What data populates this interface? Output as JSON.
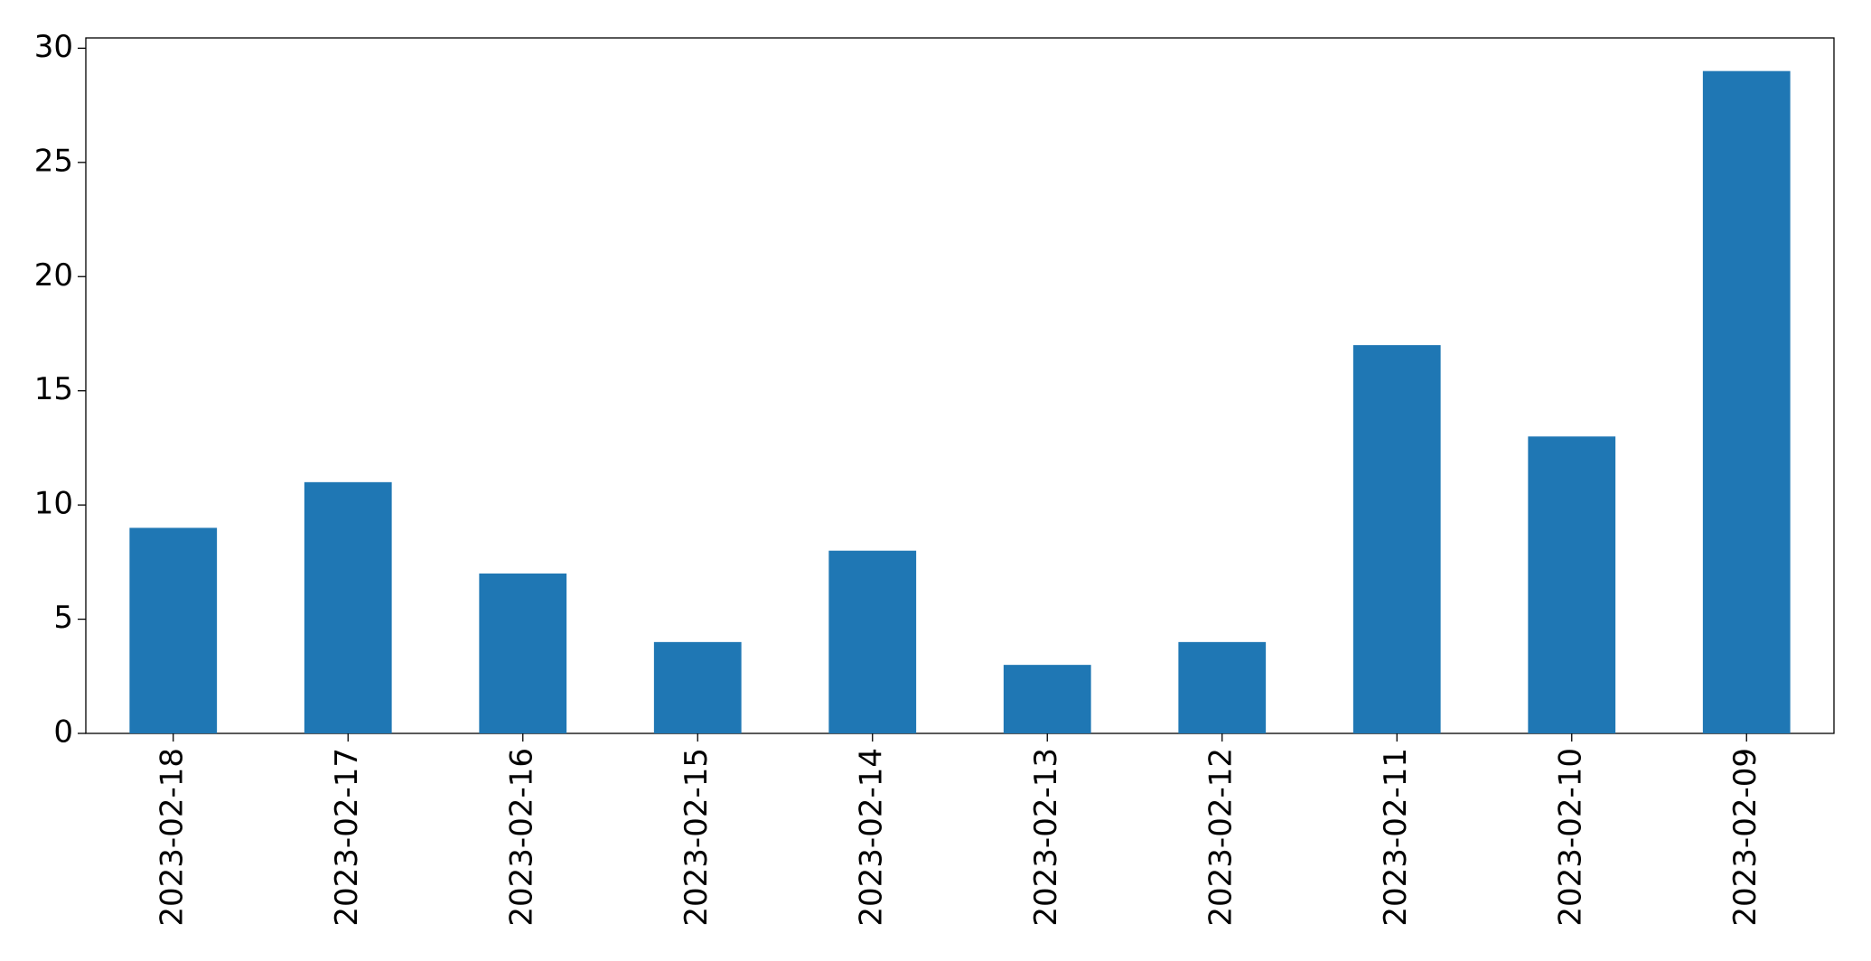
{
  "chart_data": {
    "type": "bar",
    "categories": [
      "2023-02-18",
      "2023-02-17",
      "2023-02-16",
      "2023-02-15",
      "2023-02-14",
      "2023-02-13",
      "2023-02-12",
      "2023-02-11",
      "2023-02-10",
      "2023-02-09"
    ],
    "values": [
      9,
      11,
      7,
      4,
      8,
      3,
      4,
      17,
      13,
      29
    ],
    "color": "#1f77b4",
    "ylim": [
      0,
      30.45
    ],
    "yticks": [
      0,
      5,
      10,
      15,
      20,
      25,
      30
    ],
    "grid": false
  }
}
